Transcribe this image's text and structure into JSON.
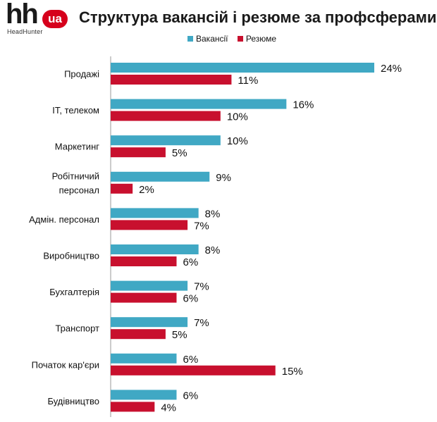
{
  "logo": {
    "mark": "hh",
    "badge": "ua",
    "sub": "HeadHunter"
  },
  "colors": {
    "vacancies": "#40a8c4",
    "resumes": "#c8102e",
    "axis": "#9a9a9a"
  },
  "chart_data": {
    "type": "bar",
    "orientation": "horizontal",
    "title": "Структура вакансій і резюме за профсферами",
    "legend_position": "top",
    "grid": false,
    "xlim": [
      0,
      24
    ],
    "categories": [
      [
        "Продажі"
      ],
      [
        "IT, телеком"
      ],
      [
        "Маркетинг"
      ],
      [
        "Робітничий",
        "персонал"
      ],
      [
        "Адмін. персонал"
      ],
      [
        "Виробництво"
      ],
      [
        "Бухгалтерія"
      ],
      [
        "Транспорт"
      ],
      [
        "Початок кар'єри"
      ],
      [
        "Будівництво"
      ]
    ],
    "series": [
      {
        "name": "Вакансії",
        "values": [
          24,
          16,
          10,
          9,
          8,
          8,
          7,
          7,
          6,
          6
        ],
        "labels": [
          "24%",
          "16%",
          "10%",
          "9%",
          "8%",
          "8%",
          "7%",
          "7%",
          "6%",
          "6%"
        ]
      },
      {
        "name": "Резюме",
        "values": [
          11,
          10,
          5,
          2,
          7,
          6,
          6,
          5,
          15,
          4
        ],
        "labels": [
          "11%",
          "10%",
          "5%",
          "2%",
          "7%",
          "6%",
          "6%",
          "5%",
          "15%",
          "4%"
        ]
      }
    ]
  }
}
